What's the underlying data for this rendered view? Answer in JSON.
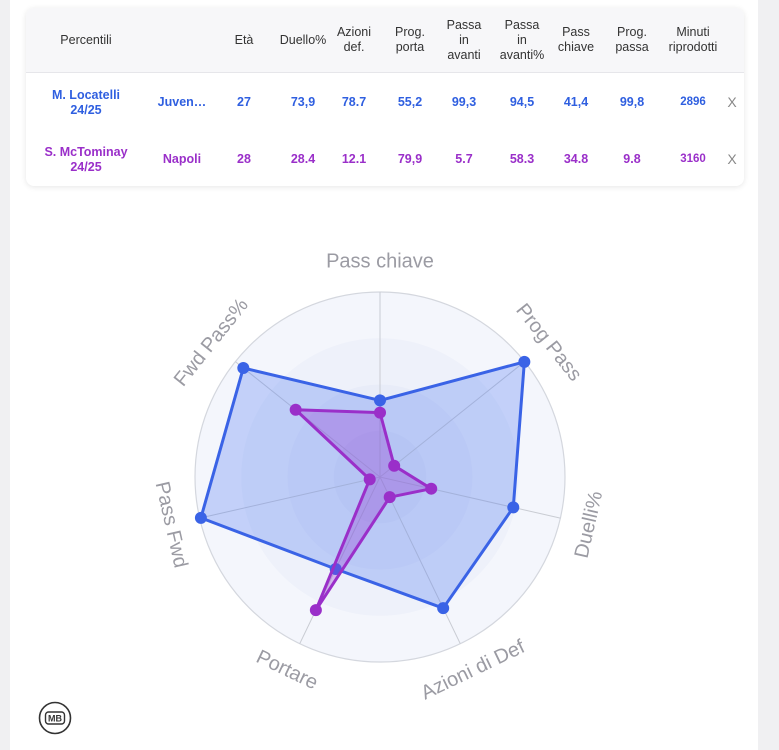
{
  "table": {
    "headers": [
      "Percentili",
      "Età",
      "Duello%",
      "Azioni\ndef.",
      "Prog.\nporta",
      "Passa\nin\navanti",
      "Passa\nin\navanti%",
      "Pass\nchiave",
      "Prog.\npassa",
      "Minuti\nriprodotti"
    ],
    "rows": [
      {
        "player": "M. Locatelli\n24/25",
        "team": "Juven…",
        "eta": "27",
        "duello": "73,9",
        "azioni": "78.7",
        "prog_porta": "55,2",
        "passa_avanti": "99,3",
        "passa_avanti_pct": "94,5",
        "pass_chiave": "41,4",
        "prog_passa": "99,8",
        "minuti": "2896",
        "remove": "X"
      },
      {
        "player": "S. McTominay\n24/25",
        "team": "Napoli",
        "eta": "28",
        "duello": "28.4",
        "azioni": "12.1",
        "prog_porta": "79,9",
        "passa_avanti": "5.7",
        "passa_avanti_pct": "58.3",
        "pass_chiave": "34.8",
        "prog_passa": "9.8",
        "minuti": "3160",
        "remove": "X"
      }
    ]
  },
  "colors": {
    "locatelli": "#3a63e6",
    "mctominay": "#9a2fc9"
  },
  "chart_data": {
    "type": "radar",
    "axes": [
      "Pass chiave",
      "Prog Pass",
      "Duelli%",
      "Azioni di Def",
      "Portare",
      "Pass Fwd",
      "Fwd Pass%"
    ],
    "range": [
      0,
      100
    ],
    "series": [
      {
        "name": "M. Locatelli 24/25",
        "values": [
          41.4,
          99.8,
          73.9,
          78.7,
          55.2,
          99.3,
          94.5
        ]
      },
      {
        "name": "S. McTominay 24/25",
        "values": [
          34.8,
          9.8,
          28.4,
          12.1,
          79.9,
          5.7,
          58.3
        ]
      }
    ]
  },
  "logo": {
    "text": "MB"
  }
}
